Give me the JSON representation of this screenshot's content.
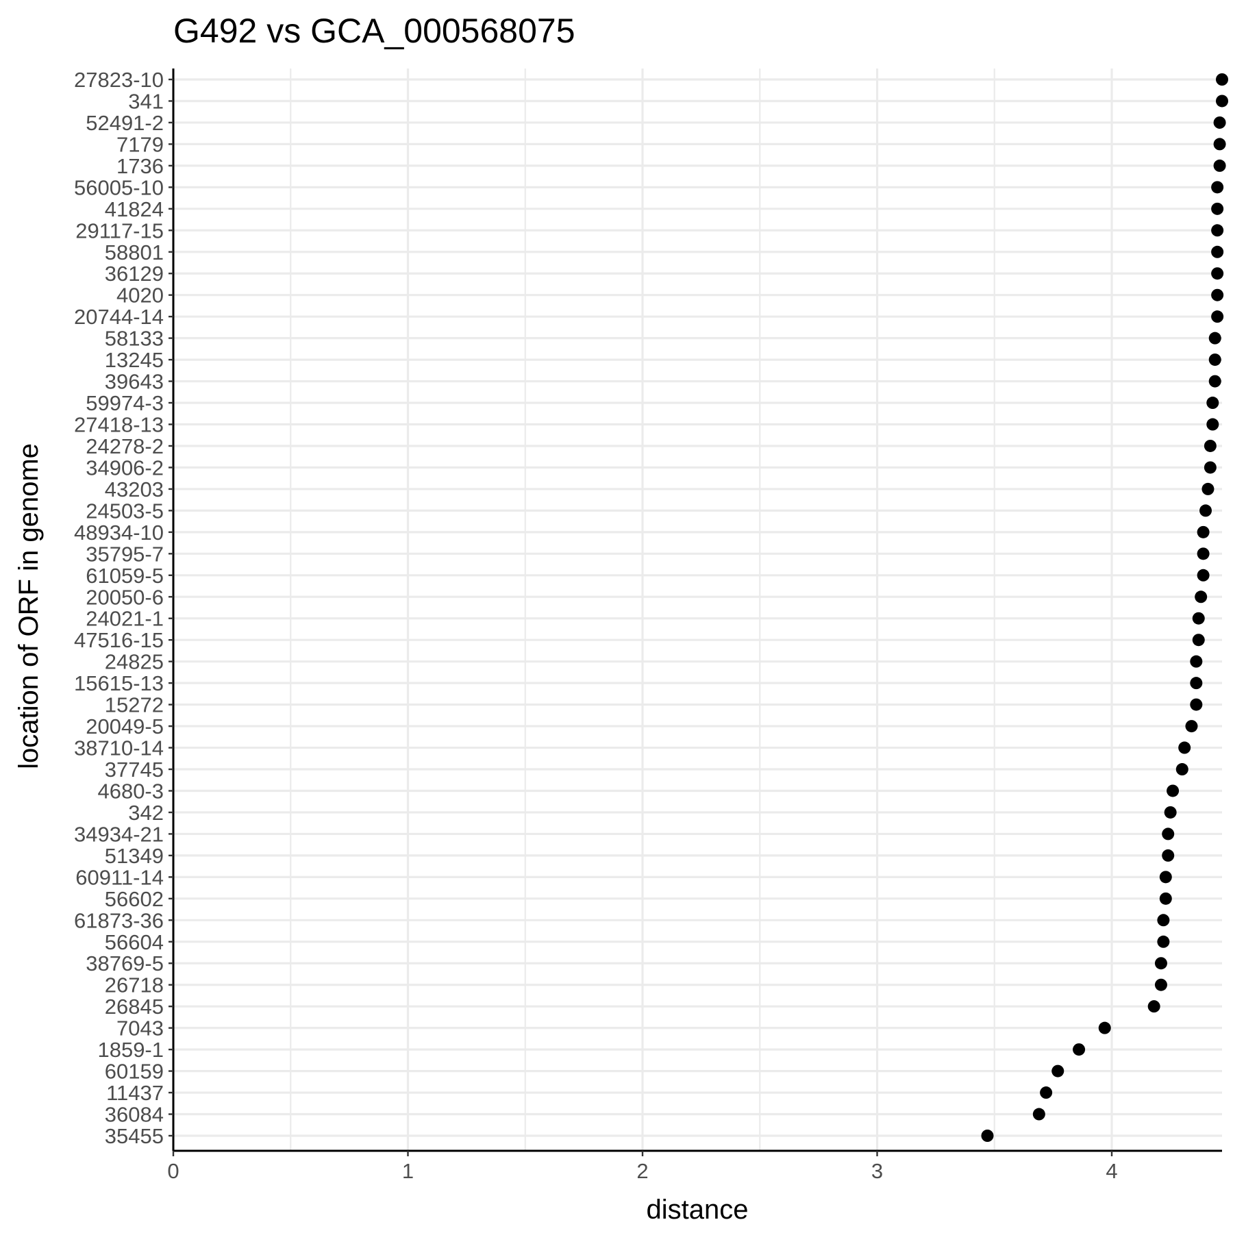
{
  "chart_data": {
    "type": "scatter",
    "title": "G492 vs GCA_000568075",
    "xlabel": "distance",
    "ylabel": "location of ORF in genome",
    "xlim": [
      0,
      4.47
    ],
    "x_ticks": [
      "0",
      "1",
      "2",
      "3",
      "4"
    ],
    "grid": true,
    "point_color": "#000000",
    "categories": [
      "27823-10",
      "341",
      "52491-2",
      "7179",
      "1736",
      "56005-10",
      "41824",
      "29117-15",
      "58801",
      "36129",
      "4020",
      "20744-14",
      "58133",
      "13245",
      "39643",
      "59974-3",
      "27418-13",
      "24278-2",
      "34906-2",
      "43203",
      "24503-5",
      "48934-10",
      "35795-7",
      "61059-5",
      "20050-6",
      "24021-1",
      "47516-15",
      "24825",
      "15615-13",
      "15272",
      "20049-5",
      "38710-14",
      "37745",
      "4680-3",
      "342",
      "34934-21",
      "51349",
      "60911-14",
      "56602",
      "61873-36",
      "56604",
      "38769-5",
      "26718",
      "26845",
      "7043",
      "1859-1",
      "60159",
      "11437",
      "36084",
      "35455"
    ],
    "values": [
      4.47,
      4.47,
      4.46,
      4.46,
      4.46,
      4.45,
      4.45,
      4.45,
      4.45,
      4.45,
      4.45,
      4.45,
      4.44,
      4.44,
      4.44,
      4.43,
      4.43,
      4.42,
      4.42,
      4.41,
      4.4,
      4.39,
      4.39,
      4.39,
      4.38,
      4.37,
      4.37,
      4.36,
      4.36,
      4.36,
      4.34,
      4.31,
      4.3,
      4.26,
      4.25,
      4.24,
      4.24,
      4.23,
      4.23,
      4.22,
      4.22,
      4.21,
      4.21,
      4.18,
      3.97,
      3.86,
      3.77,
      3.72,
      3.69,
      3.47
    ]
  }
}
